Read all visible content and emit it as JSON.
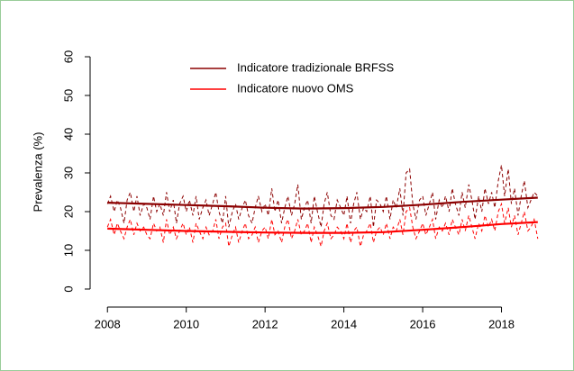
{
  "chart_data": {
    "type": "line",
    "ylabel": "Prevalenza (%)",
    "x": [
      2008,
      2008.08,
      2008.17,
      2008.25,
      2008.33,
      2008.42,
      2008.5,
      2008.58,
      2008.67,
      2008.75,
      2008.83,
      2008.92,
      2009,
      2009.08,
      2009.17,
      2009.25,
      2009.33,
      2009.42,
      2009.5,
      2009.58,
      2009.67,
      2009.75,
      2009.83,
      2009.92,
      2010,
      2010.08,
      2010.17,
      2010.25,
      2010.33,
      2010.42,
      2010.5,
      2010.58,
      2010.67,
      2010.75,
      2010.83,
      2010.92,
      2011,
      2011.08,
      2011.17,
      2011.25,
      2011.33,
      2011.42,
      2011.5,
      2011.58,
      2011.67,
      2011.75,
      2011.83,
      2011.92,
      2012,
      2012.08,
      2012.17,
      2012.25,
      2012.33,
      2012.42,
      2012.5,
      2012.58,
      2012.67,
      2012.75,
      2012.83,
      2012.92,
      2013,
      2013.08,
      2013.17,
      2013.25,
      2013.33,
      2013.42,
      2013.5,
      2013.58,
      2013.67,
      2013.75,
      2013.83,
      2013.92,
      2014,
      2014.08,
      2014.17,
      2014.25,
      2014.33,
      2014.42,
      2014.5,
      2014.58,
      2014.67,
      2014.75,
      2014.83,
      2014.92,
      2015,
      2015.08,
      2015.17,
      2015.25,
      2015.33,
      2015.42,
      2015.5,
      2015.58,
      2015.67,
      2015.75,
      2015.83,
      2015.92,
      2016,
      2016.08,
      2016.17,
      2016.25,
      2016.33,
      2016.42,
      2016.5,
      2016.58,
      2016.67,
      2016.75,
      2016.83,
      2016.92,
      2017,
      2017.08,
      2017.17,
      2017.25,
      2017.33,
      2017.42,
      2017.5,
      2017.58,
      2017.67,
      2017.75,
      2017.83,
      2017.92,
      2018,
      2018.08,
      2018.17,
      2018.25,
      2018.33,
      2018.42,
      2018.5,
      2018.58,
      2018.67,
      2018.75,
      2018.83,
      2018.92
    ],
    "trend_x": [
      2008,
      2009,
      2010,
      2011,
      2012,
      2013,
      2014,
      2015,
      2016,
      2017,
      2018,
      2018.92
    ],
    "series": [
      {
        "name": "Indicatore tradizionale BRFSS",
        "color": "#8b0000",
        "values": [
          22,
          24,
          20,
          23,
          21,
          17,
          23,
          25,
          20,
          24,
          19,
          22,
          21,
          18,
          24,
          20,
          22,
          19,
          25,
          20,
          23,
          17,
          22,
          24,
          20,
          23,
          19,
          24,
          18,
          21,
          23,
          19,
          22,
          25,
          20,
          17,
          24,
          16,
          20,
          22,
          18,
          21,
          23,
          19,
          17,
          21,
          24,
          20,
          22,
          19,
          26,
          20,
          23,
          17,
          21,
          24,
          19,
          22,
          27,
          18,
          21,
          23,
          17,
          24,
          20,
          16,
          22,
          25,
          19,
          18,
          23,
          21,
          19,
          24,
          17,
          22,
          25,
          18,
          21,
          20,
          24,
          16,
          23,
          22,
          20,
          24,
          18,
          23,
          21,
          26,
          19,
          30,
          31,
          22,
          18,
          23,
          24,
          19,
          22,
          25,
          18,
          23,
          21,
          24,
          20,
          26,
          22,
          19,
          25,
          21,
          27,
          23,
          18,
          24,
          20,
          26,
          22,
          25,
          21,
          28,
          32,
          24,
          31,
          22,
          26,
          19,
          24,
          28,
          21,
          23,
          25,
          24
        ],
        "trend": [
          22.3,
          22.0,
          21.7,
          21.4,
          21.0,
          20.8,
          20.9,
          21.2,
          21.8,
          22.5,
          23.1,
          23.6
        ]
      },
      {
        "name": "Indicatore nuovo OMS",
        "color": "#ff0000",
        "values": [
          16,
          18,
          14,
          17,
          15,
          13,
          16,
          18,
          14,
          17,
          15,
          16,
          14,
          13,
          17,
          15,
          16,
          12,
          18,
          14,
          16,
          13,
          15,
          17,
          14,
          16,
          12,
          17,
          15,
          13,
          16,
          14,
          15,
          18,
          13,
          16,
          17,
          11,
          14,
          16,
          12,
          15,
          17,
          13,
          14,
          16,
          12,
          15,
          16,
          13,
          18,
          14,
          15,
          12,
          16,
          18,
          13,
          15,
          18,
          14,
          15,
          17,
          12,
          16,
          14,
          11,
          15,
          17,
          13,
          14,
          16,
          15,
          13,
          17,
          12,
          15,
          16,
          11,
          14,
          15,
          17,
          12,
          15,
          16,
          14,
          17,
          13,
          16,
          15,
          18,
          14,
          20,
          21,
          16,
          13,
          15,
          17,
          14,
          16,
          18,
          13,
          16,
          15,
          17,
          14,
          18,
          16,
          14,
          18,
          15,
          19,
          16,
          13,
          17,
          15,
          19,
          16,
          18,
          15,
          20,
          22,
          17,
          21,
          16,
          19,
          14,
          17,
          20,
          15,
          16,
          18,
          13
        ],
        "trend": [
          15.6,
          15.3,
          15.0,
          14.8,
          14.6,
          14.5,
          14.5,
          14.7,
          15.3,
          16.0,
          16.8,
          17.3
        ]
      }
    ],
    "xlim": [
      2007.56,
      2019.36
    ],
    "xticks": [
      2008,
      2010,
      2012,
      2014,
      2016,
      2018
    ],
    "ylim": [
      -2.4,
      62.4
    ],
    "yticks": [
      0,
      10,
      20,
      30,
      40,
      50,
      60
    ],
    "legend": "top-left"
  }
}
